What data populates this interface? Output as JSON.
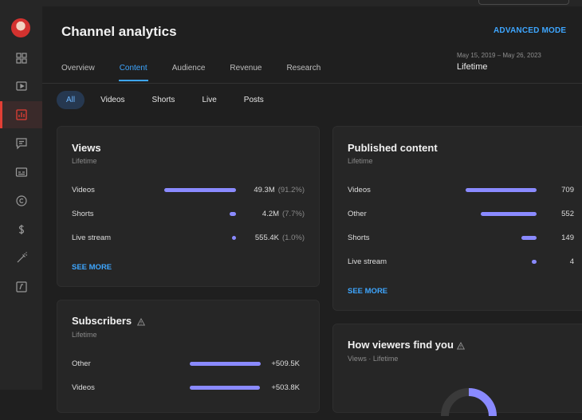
{
  "colors": {
    "accent": "#3ea6ff",
    "bar": "#8a8aff",
    "active_nav": "#e33f35"
  },
  "sidebar": {
    "items": [
      {
        "icon": "dashboard-icon"
      },
      {
        "icon": "content-icon"
      },
      {
        "icon": "analytics-icon",
        "active": true
      },
      {
        "icon": "comments-icon"
      },
      {
        "icon": "subtitles-icon"
      },
      {
        "icon": "copyright-icon"
      },
      {
        "icon": "earn-icon"
      },
      {
        "icon": "customization-icon"
      },
      {
        "icon": "audio-library-icon"
      }
    ]
  },
  "header": {
    "title": "Channel analytics",
    "advanced_mode": "ADVANCED MODE",
    "date_range": "May 15, 2019 – May 26, 2023",
    "date_label": "Lifetime"
  },
  "tabs": [
    {
      "label": "Overview"
    },
    {
      "label": "Content",
      "active": true
    },
    {
      "label": "Audience"
    },
    {
      "label": "Revenue"
    },
    {
      "label": "Research"
    }
  ],
  "chips": [
    {
      "label": "All",
      "active": true
    },
    {
      "label": "Videos"
    },
    {
      "label": "Shorts"
    },
    {
      "label": "Live"
    },
    {
      "label": "Posts"
    }
  ],
  "views_card": {
    "title": "Views",
    "subtitle": "Lifetime",
    "rows": [
      {
        "label": "Videos",
        "value": "49.3M",
        "pct": "(91.2%)",
        "fraction": 0.912
      },
      {
        "label": "Shorts",
        "value": "4.2M",
        "pct": "(7.7%)",
        "fraction": 0.077
      },
      {
        "label": "Live stream",
        "value": "555.4K",
        "pct": "(1.0%)",
        "fraction": 0.01
      }
    ],
    "see_more": "SEE MORE"
  },
  "published_card": {
    "title": "Published content",
    "subtitle": "Lifetime",
    "rows": [
      {
        "label": "Videos",
        "value": "709",
        "count": 709
      },
      {
        "label": "Other",
        "value": "552",
        "count": 552
      },
      {
        "label": "Shorts",
        "value": "149",
        "count": 149
      },
      {
        "label": "Live stream",
        "value": "4",
        "count": 4
      }
    ],
    "see_more": "SEE MORE"
  },
  "subscribers_card": {
    "title": "Subscribers",
    "subtitle": "Lifetime",
    "rows": [
      {
        "label": "Other",
        "value": "+509.5K",
        "count": 509500
      },
      {
        "label": "Videos",
        "value": "+503.8K",
        "count": 503800
      }
    ]
  },
  "viewers_card": {
    "title": "How viewers find you",
    "subtitle": "Views · Lifetime"
  }
}
